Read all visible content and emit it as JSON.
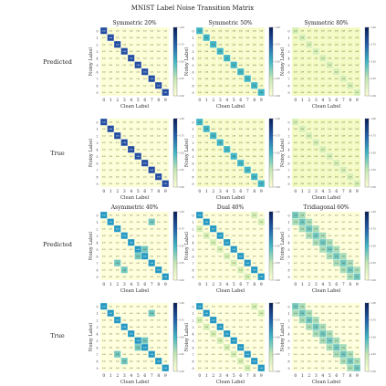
{
  "title": "MNIST Label Noise Transition Matrix",
  "row_labels": [
    "Predicted",
    "True",
    "Predicted",
    "True"
  ],
  "axis": {
    "xlabel": "Clean Label",
    "ylabel": "Noisy Label"
  },
  "colormap": {
    "low": "#ffffd9",
    "mid": "#41b6c4",
    "high": "#081d58"
  },
  "chart_data": [
    {
      "type": "heatmap",
      "title": "Symmetric 20%",
      "row": "Predicted",
      "diag": 0.8,
      "off": 0.022,
      "noise": "symmetric",
      "categories": [
        "0",
        "1",
        "2",
        "3",
        "4",
        "5",
        "6",
        "7",
        "8",
        "9"
      ],
      "vlim": [
        0,
        1
      ]
    },
    {
      "type": "heatmap",
      "title": "Symmetric 50%",
      "row": "Predicted",
      "diag": 0.5,
      "off": 0.056,
      "noise": "symmetric",
      "categories": [
        "0",
        "1",
        "2",
        "3",
        "4",
        "5",
        "6",
        "7",
        "8",
        "9"
      ],
      "vlim": [
        0,
        1
      ]
    },
    {
      "type": "heatmap",
      "title": "Symmetric 80%",
      "row": "Predicted",
      "diag": 0.2,
      "off": 0.089,
      "noise": "symmetric",
      "categories": [
        "0",
        "1",
        "2",
        "3",
        "4",
        "5",
        "6",
        "7",
        "8",
        "9"
      ],
      "vlim": [
        0,
        1
      ]
    },
    {
      "type": "heatmap",
      "title": "",
      "row": "True",
      "diag": 0.8,
      "off": 0.022,
      "noise": "symmetric",
      "categories": [
        "0",
        "1",
        "2",
        "3",
        "4",
        "5",
        "6",
        "7",
        "8",
        "9"
      ],
      "vlim": [
        0,
        1
      ]
    },
    {
      "type": "heatmap",
      "title": "",
      "row": "True",
      "diag": 0.5,
      "off": 0.056,
      "noise": "symmetric",
      "categories": [
        "0",
        "1",
        "2",
        "3",
        "4",
        "5",
        "6",
        "7",
        "8",
        "9"
      ],
      "vlim": [
        0,
        1
      ]
    },
    {
      "type": "heatmap",
      "title": "",
      "row": "True",
      "diag": 0.2,
      "off": 0.089,
      "noise": "symmetric",
      "categories": [
        "0",
        "1",
        "2",
        "3",
        "4",
        "5",
        "6",
        "7",
        "8",
        "9"
      ],
      "vlim": [
        0,
        1
      ]
    },
    {
      "type": "heatmap",
      "title": "Asymmetric 40%",
      "row": "Predicted",
      "diag": 0.6,
      "off": 0.01,
      "noise": "asymmetric",
      "categories": [
        "0",
        "1",
        "2",
        "3",
        "4",
        "5",
        "6",
        "7",
        "8",
        "9"
      ],
      "vlim": [
        0,
        1
      ]
    },
    {
      "type": "heatmap",
      "title": "Dual 40%",
      "row": "Predicted",
      "diag": 0.6,
      "off": 0.01,
      "noise": "dual",
      "categories": [
        "0",
        "1",
        "2",
        "3",
        "4",
        "5",
        "6",
        "7",
        "8",
        "9"
      ],
      "vlim": [
        0,
        1
      ]
    },
    {
      "type": "heatmap",
      "title": "Tridiagonal 60%",
      "row": "Predicted",
      "diag": 0.4,
      "off": 0.01,
      "noise": "tridiagonal",
      "categories": [
        "0",
        "1",
        "2",
        "3",
        "4",
        "5",
        "6",
        "7",
        "8",
        "9"
      ],
      "vlim": [
        0,
        1
      ]
    },
    {
      "type": "heatmap",
      "title": "",
      "row": "True",
      "diag": 0.6,
      "off": 0.0,
      "noise": "asymmetric",
      "categories": [
        "0",
        "1",
        "2",
        "3",
        "4",
        "5",
        "6",
        "7",
        "8",
        "9"
      ],
      "vlim": [
        0,
        1
      ]
    },
    {
      "type": "heatmap",
      "title": "",
      "row": "True",
      "diag": 0.6,
      "off": 0.0,
      "noise": "dual",
      "categories": [
        "0",
        "1",
        "2",
        "3",
        "4",
        "5",
        "6",
        "7",
        "8",
        "9"
      ],
      "vlim": [
        0,
        1
      ]
    },
    {
      "type": "heatmap",
      "title": "",
      "row": "True",
      "diag": 0.4,
      "off": 0.0,
      "noise": "tridiagonal",
      "categories": [
        "0",
        "1",
        "2",
        "3",
        "4",
        "5",
        "6",
        "7",
        "8",
        "9"
      ],
      "vlim": [
        0,
        1
      ]
    }
  ]
}
